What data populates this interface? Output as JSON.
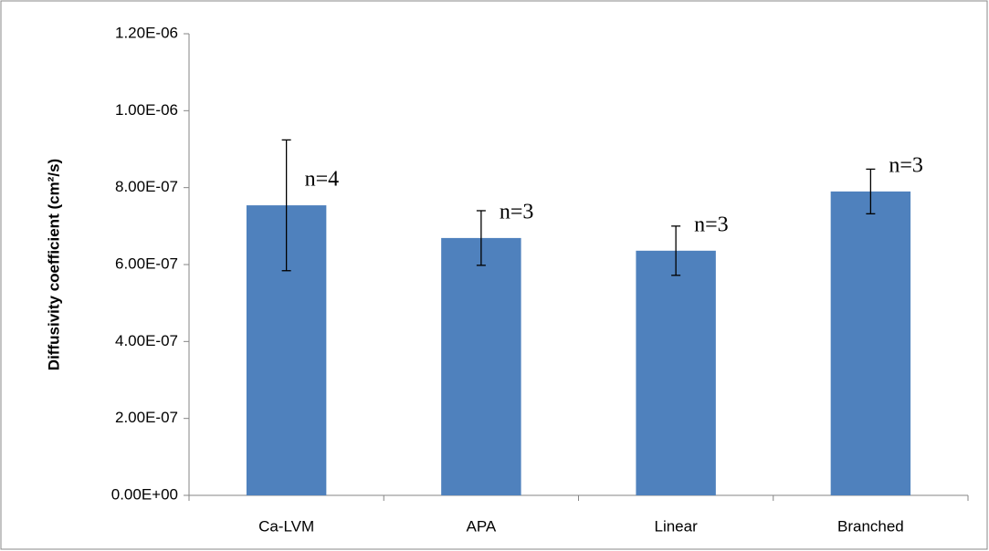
{
  "chart_data": {
    "type": "bar",
    "y_label": "Diffusivity coefficient (cm²/s)",
    "categories": [
      "Ca-LVM",
      "APA",
      "Linear",
      "Branched"
    ],
    "values": [
      7.54e-07,
      6.69e-07,
      6.36e-07,
      7.9e-07
    ],
    "errors": [
      1.7e-07,
      7.1e-08,
      6.4e-08,
      5.8e-08
    ],
    "annotations": [
      "n=4",
      "n=3",
      "n=3",
      "n=3"
    ],
    "color": "#4f81bd",
    "ylim": [
      0,
      1.2e-06
    ],
    "yticks": [
      {
        "value": 0,
        "label": "0.00E+00"
      },
      {
        "value": 2e-07,
        "label": "2.00E-07"
      },
      {
        "value": 4e-07,
        "label": "4.00E-07"
      },
      {
        "value": 6e-07,
        "label": "6.00E-07"
      },
      {
        "value": 8e-07,
        "label": "8.00E-07"
      },
      {
        "value": 1e-06,
        "label": "1.00E-06"
      },
      {
        "value": 1.2e-06,
        "label": "1.20E-06"
      }
    ],
    "grid": false
  }
}
